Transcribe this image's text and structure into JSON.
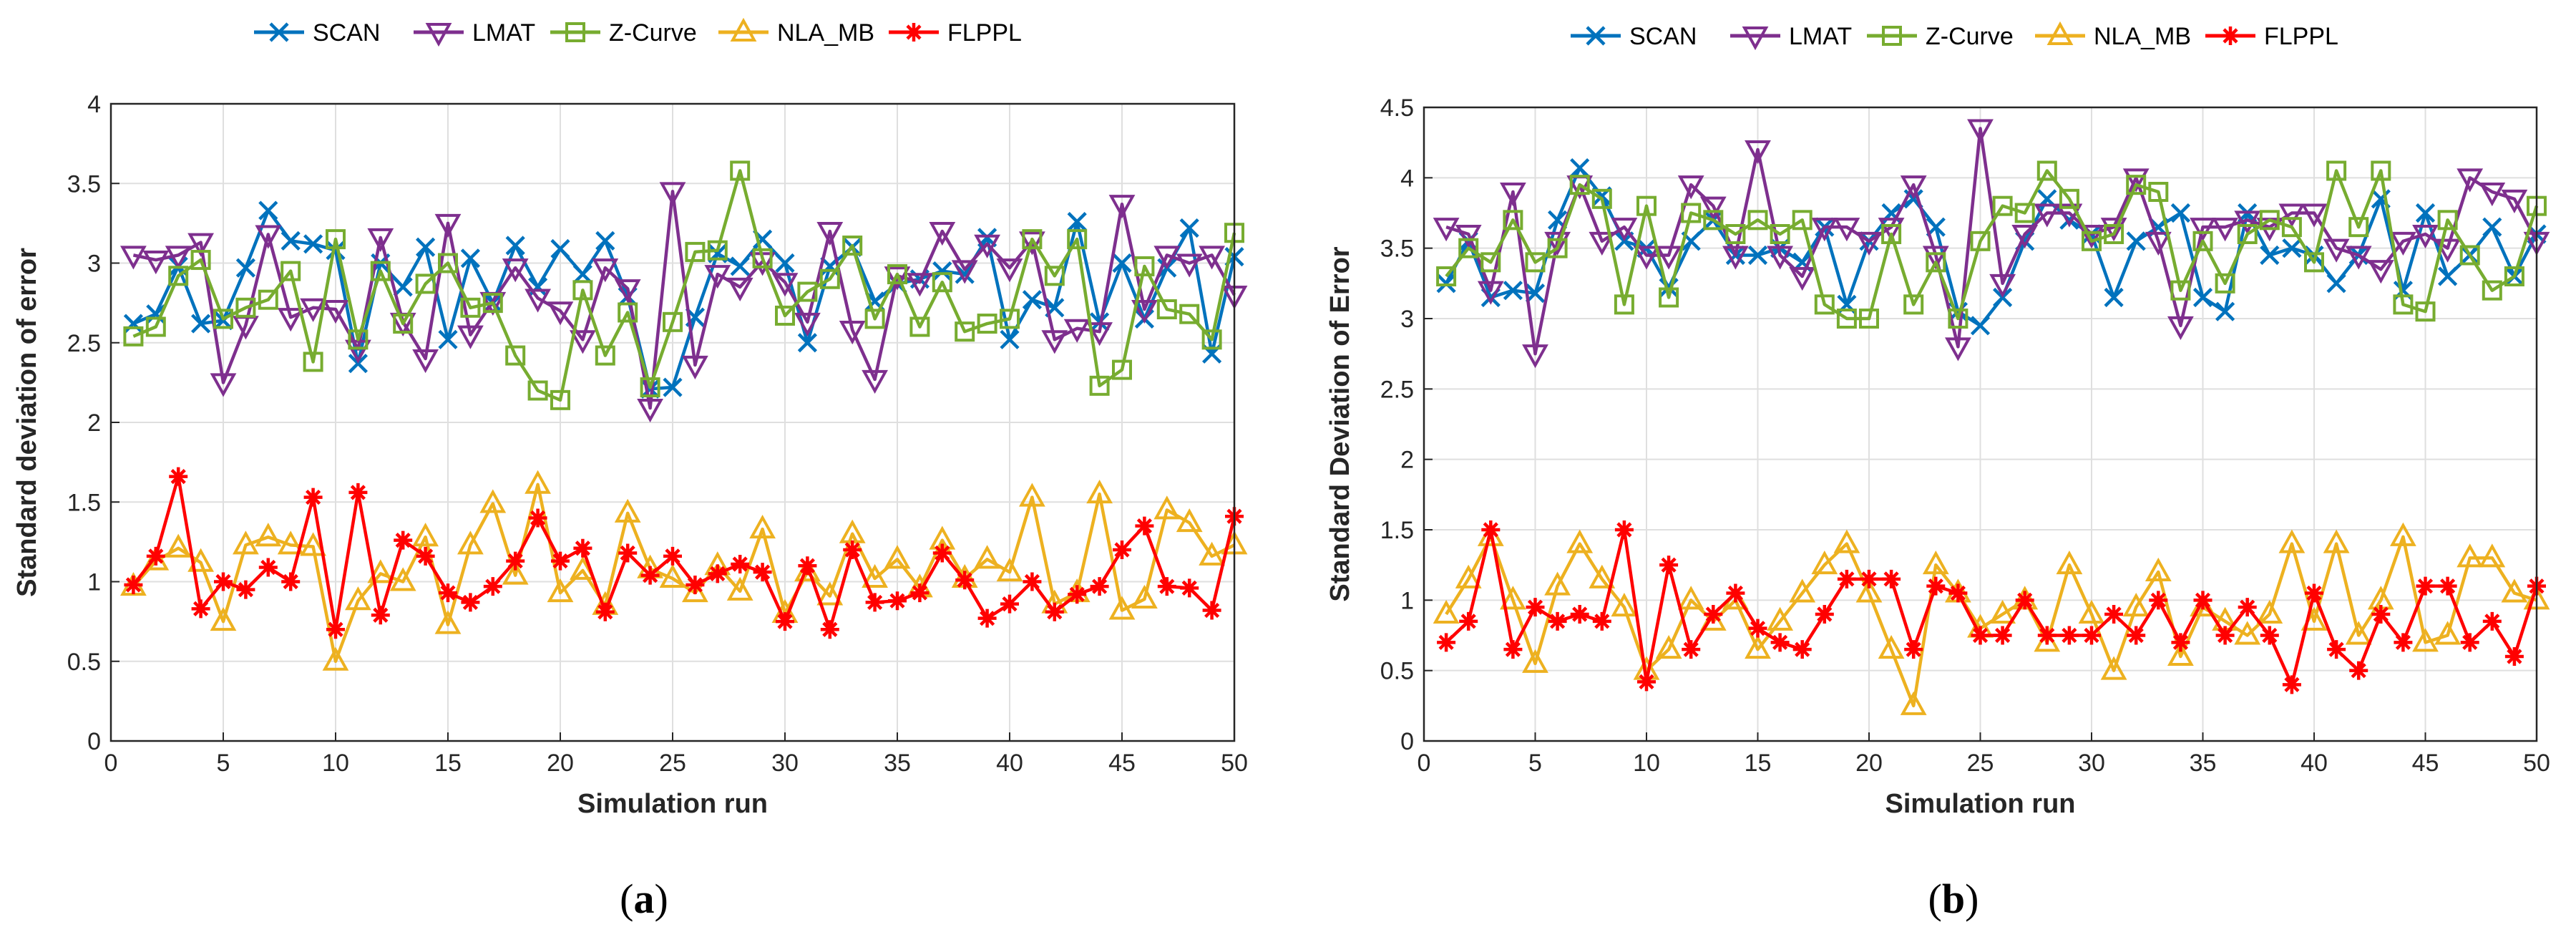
{
  "chart_data": [
    {
      "type": "line",
      "panel_label": "a",
      "xlabel": "Simulation run",
      "ylabel": "Standard deviation of error",
      "xlim": [
        0,
        50
      ],
      "ylim": [
        0,
        4
      ],
      "xticks": [
        0,
        5,
        10,
        15,
        20,
        25,
        30,
        35,
        40,
        45,
        50
      ],
      "yticks": [
        0,
        0.5,
        1,
        1.5,
        2,
        2.5,
        3,
        3.5,
        4
      ],
      "ytick_labels": [
        "0",
        "0.5",
        "1",
        "1.5",
        "2",
        "2.5",
        "3",
        "3.5",
        "4"
      ],
      "grid": true,
      "legend_position": "top",
      "x": [
        1,
        2,
        3,
        4,
        5,
        6,
        7,
        8,
        9,
        10,
        11,
        12,
        13,
        14,
        15,
        16,
        17,
        18,
        19,
        20,
        21,
        22,
        23,
        24,
        25,
        26,
        27,
        28,
        29,
        30,
        31,
        32,
        33,
        34,
        35,
        36,
        37,
        38,
        39,
        40,
        41,
        42,
        43,
        44,
        45,
        46,
        47,
        48,
        49,
        50
      ],
      "series": [
        {
          "name": "SCAN",
          "color": "#0072BD",
          "marker": "x",
          "values": [
            2.62,
            2.68,
            2.98,
            2.62,
            2.64,
            2.97,
            3.33,
            3.14,
            3.12,
            3.08,
            2.37,
            3.0,
            2.85,
            3.1,
            2.52,
            3.03,
            2.75,
            3.11,
            2.85,
            3.09,
            2.93,
            3.14,
            2.79,
            2.21,
            2.22,
            2.66,
            3.06,
            2.98,
            3.15,
            3.0,
            2.5,
            2.98,
            3.1,
            2.76,
            2.87,
            2.9,
            2.95,
            2.93,
            3.16,
            2.52,
            2.77,
            2.72,
            3.26,
            2.63,
            3.0,
            2.65,
            2.97,
            3.22,
            2.43,
            3.04
          ]
        },
        {
          "name": "LMAT",
          "color": "#7E2F8E",
          "marker": "triangle-down",
          "values": [
            3.05,
            3.02,
            3.05,
            3.13,
            2.25,
            2.61,
            3.18,
            2.66,
            2.72,
            2.71,
            2.46,
            3.16,
            2.63,
            2.4,
            3.25,
            2.55,
            2.76,
            2.97,
            2.78,
            2.7,
            2.52,
            2.97,
            2.84,
            2.09,
            3.45,
            2.36,
            2.93,
            2.85,
            3.01,
            2.88,
            2.63,
            3.2,
            2.58,
            2.27,
            2.92,
            2.88,
            3.2,
            2.96,
            3.12,
            2.97,
            3.14,
            2.52,
            2.59,
            2.57,
            3.37,
            2.71,
            3.05,
            3.0,
            3.05,
            2.8
          ]
        },
        {
          "name": "Z-Curve",
          "color": "#77AC30",
          "marker": "square",
          "values": [
            2.54,
            2.6,
            2.92,
            3.02,
            2.65,
            2.72,
            2.77,
            2.95,
            2.38,
            3.15,
            2.52,
            2.95,
            2.62,
            2.87,
            3.0,
            2.72,
            2.75,
            2.42,
            2.2,
            2.14,
            2.83,
            2.42,
            2.69,
            2.22,
            2.63,
            3.07,
            3.08,
            3.58,
            3.03,
            2.67,
            2.82,
            2.9,
            3.11,
            2.65,
            2.93,
            2.6,
            2.88,
            2.57,
            2.62,
            2.65,
            3.15,
            2.92,
            3.15,
            2.23,
            2.33,
            2.98,
            2.71,
            2.68,
            2.52,
            3.19
          ]
        },
        {
          "name": "NLA_MB",
          "color": "#EDB120",
          "marker": "triangle-up",
          "values": [
            0.97,
            1.13,
            1.21,
            1.12,
            0.75,
            1.23,
            1.28,
            1.23,
            1.22,
            0.5,
            0.88,
            1.05,
            1.0,
            1.28,
            0.73,
            1.23,
            1.49,
            1.04,
            1.61,
            0.93,
            1.07,
            0.85,
            1.43,
            1.08,
            1.02,
            0.93,
            1.1,
            0.94,
            1.33,
            0.8,
            1.06,
            0.91,
            1.3,
            1.02,
            1.14,
            0.96,
            1.26,
            1.02,
            1.14,
            1.06,
            1.53,
            0.86,
            0.93,
            1.55,
            0.82,
            0.89,
            1.45,
            1.37,
            1.16,
            1.23
          ]
        },
        {
          "name": "FLPPL",
          "color": "#FF0000",
          "marker": "asterisk",
          "values": [
            0.98,
            1.16,
            1.66,
            0.83,
            1.0,
            0.95,
            1.09,
            1.0,
            1.53,
            0.7,
            1.56,
            0.79,
            1.26,
            1.16,
            0.93,
            0.87,
            0.97,
            1.13,
            1.4,
            1.13,
            1.21,
            0.81,
            1.18,
            1.04,
            1.16,
            0.98,
            1.05,
            1.11,
            1.06,
            0.75,
            1.1,
            0.7,
            1.2,
            0.87,
            0.88,
            0.93,
            1.18,
            1.01,
            0.77,
            0.86,
            1.0,
            0.81,
            0.92,
            0.97,
            1.2,
            1.35,
            0.97,
            0.96,
            0.82,
            1.41
          ]
        }
      ]
    },
    {
      "type": "line",
      "panel_label": "b",
      "xlabel": "Simulation run",
      "ylabel": "Standard Deviation of Error",
      "xlim": [
        0,
        50
      ],
      "ylim": [
        0,
        4.5
      ],
      "xticks": [
        0,
        5,
        10,
        15,
        20,
        25,
        30,
        35,
        40,
        45,
        50
      ],
      "yticks": [
        0,
        0.5,
        1,
        1.5,
        2,
        2.5,
        3,
        3.5,
        4,
        4.5
      ],
      "ytick_labels": [
        "0",
        "0.5",
        "1",
        "1.5",
        "2",
        "2.5",
        "3",
        "3.5",
        "4",
        "4.5"
      ],
      "grid": true,
      "legend_position": "top",
      "x": [
        1,
        2,
        3,
        4,
        5,
        6,
        7,
        8,
        9,
        10,
        11,
        12,
        13,
        14,
        15,
        16,
        17,
        18,
        19,
        20,
        21,
        22,
        23,
        24,
        25,
        26,
        27,
        28,
        29,
        30,
        31,
        32,
        33,
        34,
        35,
        36,
        37,
        38,
        39,
        40,
        41,
        42,
        43,
        44,
        45,
        46,
        47,
        48,
        49,
        50
      ],
      "series": [
        {
          "name": "SCAN",
          "color": "#0072BD",
          "marker": "x",
          "values": [
            3.25,
            3.55,
            3.15,
            3.2,
            3.18,
            3.7,
            4.07,
            3.87,
            3.55,
            3.5,
            3.22,
            3.55,
            3.7,
            3.45,
            3.45,
            3.5,
            3.4,
            3.65,
            3.1,
            3.55,
            3.75,
            3.85,
            3.65,
            3.05,
            2.95,
            3.15,
            3.55,
            3.85,
            3.7,
            3.6,
            3.15,
            3.55,
            3.65,
            3.75,
            3.15,
            3.05,
            3.75,
            3.45,
            3.5,
            3.45,
            3.25,
            3.45,
            3.85,
            3.2,
            3.75,
            3.3,
            3.45,
            3.65,
            3.3,
            3.6
          ]
        },
        {
          "name": "LMAT",
          "color": "#7E2F8E",
          "marker": "triangle-down",
          "values": [
            3.65,
            3.6,
            3.2,
            3.9,
            2.75,
            3.55,
            3.95,
            3.55,
            3.65,
            3.45,
            3.45,
            3.95,
            3.8,
            3.45,
            4.2,
            3.45,
            3.3,
            3.65,
            3.65,
            3.55,
            3.65,
            3.95,
            3.45,
            2.8,
            4.35,
            3.25,
            3.6,
            3.75,
            3.75,
            3.6,
            3.65,
            4.0,
            3.55,
            2.95,
            3.65,
            3.65,
            3.7,
            3.65,
            3.75,
            3.75,
            3.5,
            3.45,
            3.35,
            3.55,
            3.6,
            3.5,
            4.0,
            3.9,
            3.85,
            3.55
          ]
        },
        {
          "name": "Z-Curve",
          "color": "#77AC30",
          "marker": "square",
          "values": [
            3.3,
            3.5,
            3.4,
            3.7,
            3.4,
            3.5,
            3.95,
            3.85,
            3.1,
            3.8,
            3.15,
            3.75,
            3.7,
            3.6,
            3.7,
            3.6,
            3.7,
            3.1,
            3.0,
            3.0,
            3.6,
            3.1,
            3.4,
            3.0,
            3.55,
            3.8,
            3.75,
            4.05,
            3.85,
            3.55,
            3.6,
            3.95,
            3.9,
            3.2,
            3.55,
            3.25,
            3.6,
            3.7,
            3.65,
            3.4,
            4.05,
            3.65,
            4.05,
            3.1,
            3.05,
            3.7,
            3.45,
            3.2,
            3.3,
            3.8
          ]
        },
        {
          "name": "NLA_MB",
          "color": "#EDB120",
          "marker": "triangle-up",
          "values": [
            0.9,
            1.15,
            1.45,
            1.0,
            0.55,
            1.1,
            1.4,
            1.15,
            0.95,
            0.5,
            0.65,
            1.0,
            0.85,
            1.0,
            0.65,
            0.85,
            1.05,
            1.25,
            1.4,
            1.05,
            0.65,
            0.25,
            1.25,
            1.05,
            0.8,
            0.9,
            1.0,
            0.7,
            1.25,
            0.9,
            0.5,
            0.95,
            1.2,
            0.6,
            0.95,
            0.85,
            0.75,
            0.9,
            1.4,
            0.85,
            1.4,
            0.75,
            1.0,
            1.45,
            0.7,
            0.75,
            1.3,
            1.3,
            1.05,
            1.0
          ]
        },
        {
          "name": "FLPPL",
          "color": "#FF0000",
          "marker": "asterisk",
          "values": [
            0.7,
            0.85,
            1.5,
            0.65,
            0.95,
            0.85,
            0.9,
            0.85,
            1.5,
            0.42,
            1.25,
            0.65,
            0.9,
            1.05,
            0.8,
            0.7,
            0.65,
            0.9,
            1.15,
            1.15,
            1.15,
            0.65,
            1.1,
            1.05,
            0.75,
            0.75,
            1.0,
            0.75,
            0.75,
            0.75,
            0.9,
            0.75,
            1.0,
            0.7,
            1.0,
            0.75,
            0.95,
            0.75,
            0.4,
            1.05,
            0.65,
            0.5,
            0.9,
            0.7,
            1.1,
            1.1,
            0.7,
            0.85,
            0.6,
            1.1
          ]
        }
      ]
    }
  ]
}
